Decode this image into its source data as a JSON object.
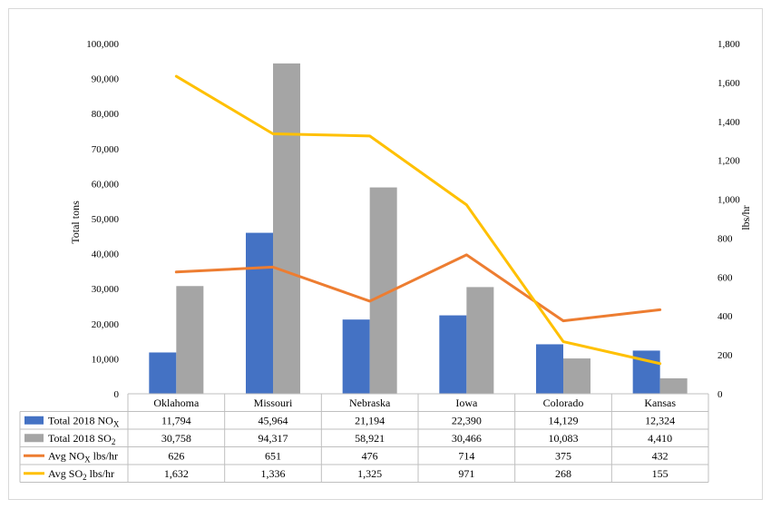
{
  "chart_data": {
    "type": "bar",
    "categories": [
      "Oklahoma",
      "Missouri",
      "Nebraska",
      "Iowa",
      "Colorado",
      "Kansas"
    ],
    "ylabel_left": "Total tons",
    "ylabel_right": "lbs/hr",
    "ylim_left": [
      0,
      100000
    ],
    "ylim_right": [
      0,
      1800
    ],
    "yticks_left": [
      "0",
      "10,000",
      "20,000",
      "30,000",
      "40,000",
      "50,000",
      "60,000",
      "70,000",
      "80,000",
      "90,000",
      "100,000"
    ],
    "yticks_right": [
      "0",
      "200",
      "400",
      "600",
      "800",
      "1,000",
      "1,200",
      "1,400",
      "1,600",
      "1,800"
    ],
    "grid": false,
    "legend": "data table below the chart",
    "series": [
      {
        "key": "nox_total",
        "type": "bar",
        "axis": "left",
        "color": "#4472c4",
        "label_main": "Total 2018 NO",
        "label_sub": "X",
        "label_tail": "",
        "values": [
          11794,
          45964,
          21194,
          22390,
          14129,
          12324
        ],
        "labels": [
          "11,794",
          "45,964",
          "21,194",
          "22,390",
          "14,129",
          "12,324"
        ]
      },
      {
        "key": "so2_total",
        "type": "bar",
        "axis": "left",
        "color": "#a5a5a5",
        "label_main": "Total 2018 SO",
        "label_sub": "2",
        "label_tail": "",
        "values": [
          30758,
          94317,
          58921,
          30466,
          10083,
          4410
        ],
        "labels": [
          "30,758",
          "94,317",
          "58,921",
          "30,466",
          "10,083",
          "4,410"
        ]
      },
      {
        "key": "nox_avg",
        "type": "line",
        "axis": "right",
        "color": "#ed7d31",
        "label_main": "Avg NO",
        "label_sub": "X",
        "label_tail": " lbs/hr",
        "values": [
          626,
          651,
          476,
          714,
          375,
          432
        ],
        "labels": [
          "626",
          "651",
          "476",
          "714",
          "375",
          "432"
        ]
      },
      {
        "key": "so2_avg",
        "type": "line",
        "axis": "right",
        "color": "#ffc000",
        "label_main": "Avg SO",
        "label_sub": "2",
        "label_tail": " lbs/hr",
        "values": [
          1632,
          1336,
          1325,
          971,
          268,
          155
        ],
        "labels": [
          "1,632",
          "1,336",
          "1,325",
          "971",
          "268",
          "155"
        ]
      }
    ]
  }
}
